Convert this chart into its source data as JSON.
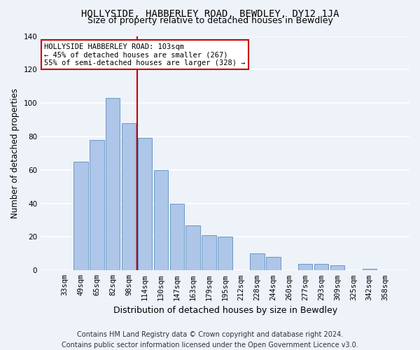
{
  "title": "HOLLYSIDE, HABBERLEY ROAD, BEWDLEY, DY12 1JA",
  "subtitle": "Size of property relative to detached houses in Bewdley",
  "xlabel": "Distribution of detached houses by size in Bewdley",
  "ylabel": "Number of detached properties",
  "categories": [
    "33sqm",
    "49sqm",
    "65sqm",
    "82sqm",
    "98sqm",
    "114sqm",
    "130sqm",
    "147sqm",
    "163sqm",
    "179sqm",
    "195sqm",
    "212sqm",
    "228sqm",
    "244sqm",
    "260sqm",
    "277sqm",
    "293sqm",
    "309sqm",
    "325sqm",
    "342sqm",
    "358sqm"
  ],
  "values": [
    0,
    65,
    78,
    103,
    88,
    79,
    60,
    40,
    27,
    21,
    20,
    0,
    10,
    8,
    0,
    4,
    4,
    3,
    0,
    1,
    0
  ],
  "bar_color": "#aec6e8",
  "bar_edge_color": "#5a8fc0",
  "vline_x": 4.5,
  "vline_color": "#cc0000",
  "annotation_line1": "HOLLYSIDE HABBERLEY ROAD: 103sqm",
  "annotation_line2": "← 45% of detached houses are smaller (267)",
  "annotation_line3": "55% of semi-detached houses are larger (328) →",
  "annotation_box_color": "#cc0000",
  "ylim": [
    0,
    140
  ],
  "yticks": [
    0,
    20,
    40,
    60,
    80,
    100,
    120,
    140
  ],
  "footer_line1": "Contains HM Land Registry data © Crown copyright and database right 2024.",
  "footer_line2": "Contains public sector information licensed under the Open Government Licence v3.0.",
  "background_color": "#eef2f9",
  "grid_color": "#ffffff",
  "title_fontsize": 10,
  "subtitle_fontsize": 9,
  "ylabel_fontsize": 8.5,
  "xlabel_fontsize": 9,
  "tick_fontsize": 7.5,
  "footer_fontsize": 7
}
